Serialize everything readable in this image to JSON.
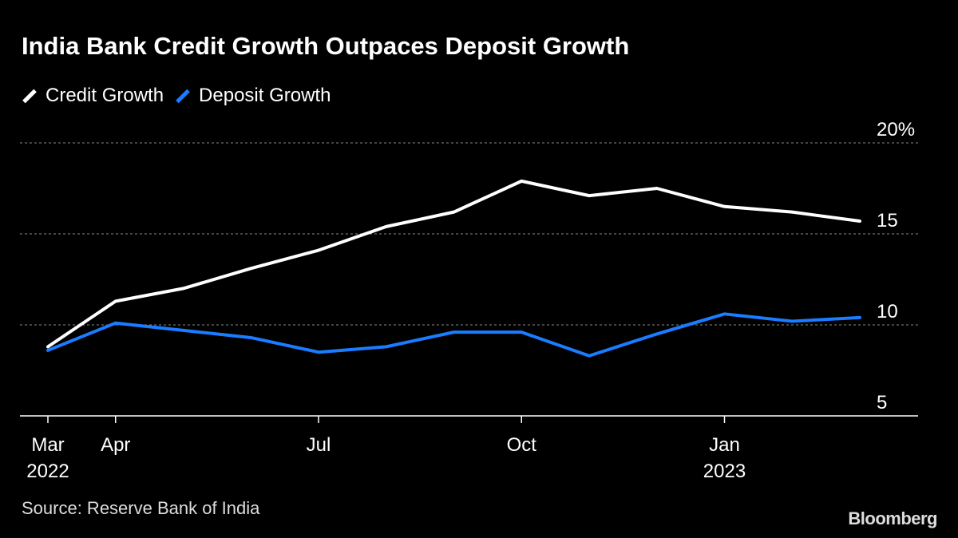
{
  "title": "India Bank Credit Growth Outpaces Deposit Growth",
  "source": "Source: Reserve Bank of India",
  "logo": "Bloomberg",
  "chart_data": {
    "type": "line",
    "title": "India Bank Credit Growth Outpaces Deposit Growth",
    "x": [
      "2022-03",
      "2022-04",
      "2022-05",
      "2022-06",
      "2022-07",
      "2022-08",
      "2022-09",
      "2022-10",
      "2022-11",
      "2022-12",
      "2023-01",
      "2023-02",
      "2023-03"
    ],
    "series": [
      {
        "name": "Credit Growth",
        "color": "#ffffff",
        "values": [
          8.8,
          11.3,
          12.0,
          13.1,
          14.1,
          15.4,
          16.2,
          17.9,
          17.1,
          17.5,
          16.5,
          16.2,
          15.7
        ]
      },
      {
        "name": "Deposit Growth",
        "color": "#1a7cff",
        "values": [
          8.6,
          10.1,
          9.7,
          9.3,
          8.5,
          8.8,
          9.6,
          9.6,
          8.3,
          9.5,
          10.6,
          10.2,
          10.4
        ]
      }
    ],
    "ylim": [
      5,
      20
    ],
    "yticks": [
      {
        "v": 20,
        "label": "20%"
      },
      {
        "v": 15,
        "label": "15"
      },
      {
        "v": 10,
        "label": "10"
      },
      {
        "v": 5,
        "label": "5"
      }
    ],
    "xticks": [
      {
        "i": 0,
        "label": "Mar",
        "sub": "2022"
      },
      {
        "i": 1,
        "label": "Apr",
        "sub": ""
      },
      {
        "i": 4,
        "label": "Jul",
        "sub": ""
      },
      {
        "i": 7,
        "label": "Oct",
        "sub": ""
      },
      {
        "i": 10,
        "label": "Jan",
        "sub": "2023"
      }
    ],
    "grid": true,
    "legend": "top-left"
  }
}
